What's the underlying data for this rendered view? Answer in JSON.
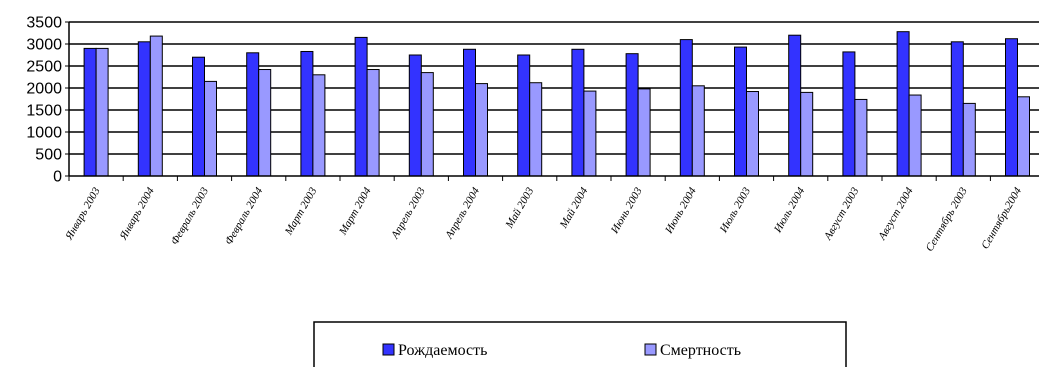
{
  "chart_data": {
    "type": "bar",
    "categories": [
      "Январь 2003",
      "Январь 2004",
      "Февраль 2003",
      "Февраль 2004",
      "Март 2003",
      "Март 2004",
      "Апрель 2003",
      "Апрель 2004",
      "Май 2003",
      "Май 2004",
      "Июнь 2003",
      "Июнь 2004",
      "Июль 2003",
      "Июль 2004",
      "Август  2003",
      "Август 2004",
      "Сентябрь 2003",
      "Сентябрь2004"
    ],
    "series": [
      {
        "name": "Рождаемость",
        "color": "#3333ff",
        "values": [
          2900,
          3050,
          2700,
          2800,
          2830,
          3150,
          2750,
          2880,
          2750,
          2880,
          2780,
          3100,
          2930,
          3200,
          2820,
          3280,
          3050,
          3120
        ]
      },
      {
        "name": "Смертность",
        "color": "#9999ff",
        "values": [
          2900,
          3180,
          2150,
          2420,
          2300,
          2420,
          2350,
          2100,
          2120,
          1930,
          1980,
          2050,
          1920,
          1900,
          1740,
          1840,
          1650,
          1800
        ]
      }
    ],
    "yticks": [
      0,
      500,
      1000,
      1500,
      2000,
      2500,
      3000,
      3500
    ],
    "ylim": [
      0,
      3500
    ],
    "grid": true,
    "legend": "bottom-center",
    "title": "",
    "xlabel": "",
    "ylabel": ""
  }
}
